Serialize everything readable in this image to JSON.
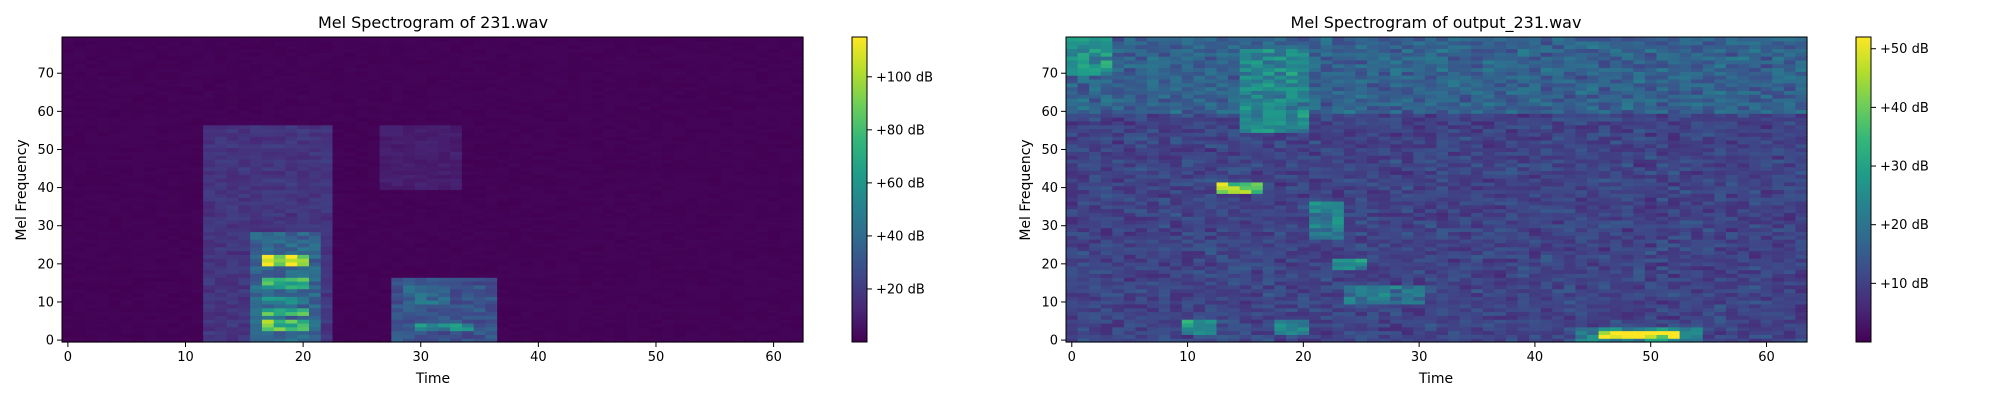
{
  "colors": {
    "viridis": [
      "#440154",
      "#482878",
      "#3e4989",
      "#31688e",
      "#26828e",
      "#1f9e89",
      "#35b779",
      "#6ece58",
      "#b5de2b",
      "#fde725"
    ]
  },
  "chart_data": [
    {
      "type": "heatmap",
      "title": "Mel Spectrogram of 231.wav",
      "xlabel": "Time",
      "ylabel": "Mel Frequency",
      "x_ticks": [
        0,
        10,
        20,
        30,
        40,
        50,
        60
      ],
      "y_ticks": [
        0,
        10,
        20,
        30,
        40,
        50,
        60,
        70
      ],
      "xlim": [
        -0.5,
        62.5
      ],
      "ylim": [
        -0.5,
        79.5
      ],
      "n_frames": 63,
      "n_mels": 80,
      "colorbar": {
        "min": 0,
        "max": 115,
        "ticks": [
          20,
          40,
          60,
          80,
          100
        ],
        "tick_labels": [
          "+20 dB",
          "+40 dB",
          "+60 dB",
          "+80 dB",
          "+100 dB"
        ]
      },
      "blobs": [
        {
          "t": [
            12,
            22
          ],
          "f": [
            0,
            56
          ],
          "level": 18
        },
        {
          "t": [
            16,
            21
          ],
          "f": [
            0,
            28
          ],
          "level": 38
        },
        {
          "t": [
            17,
            20
          ],
          "f": [
            20,
            22
          ],
          "level": 112
        },
        {
          "t": [
            17,
            20
          ],
          "f": [
            14,
            16
          ],
          "level": 75
        },
        {
          "t": [
            17,
            20
          ],
          "f": [
            7,
            8
          ],
          "level": 80
        },
        {
          "t": [
            17,
            20
          ],
          "f": [
            3,
            5
          ],
          "level": 88
        },
        {
          "t": [
            17,
            20
          ],
          "f": [
            10,
            11
          ],
          "level": 55
        },
        {
          "t": [
            28,
            36
          ],
          "f": [
            0,
            16
          ],
          "level": 30
        },
        {
          "t": [
            29,
            32
          ],
          "f": [
            10,
            14
          ],
          "level": 42
        },
        {
          "t": [
            30,
            34
          ],
          "f": [
            3,
            4
          ],
          "level": 55
        },
        {
          "t": [
            27,
            33
          ],
          "f": [
            40,
            56
          ],
          "level": 9
        }
      ]
    },
    {
      "type": "heatmap",
      "title": "Mel Spectrogram of output_231.wav",
      "xlabel": "Time",
      "ylabel": "Mel Frequency",
      "x_ticks": [
        0,
        10,
        20,
        30,
        40,
        50,
        60
      ],
      "y_ticks": [
        0,
        10,
        20,
        30,
        40,
        50,
        60,
        70
      ],
      "xlim": [
        -0.5,
        63.5
      ],
      "ylim": [
        -0.5,
        79.5
      ],
      "n_frames": 64,
      "n_mels": 80,
      "colorbar": {
        "min": 0,
        "max": 52,
        "ticks": [
          10,
          20,
          30,
          40,
          50
        ],
        "tick_labels": [
          "+10 dB",
          "+20 dB",
          "+30 dB",
          "+40 dB",
          "+50 dB"
        ]
      },
      "blobs": [
        {
          "t": [
            0,
            63
          ],
          "f": [
            60,
            79
          ],
          "level": 14
        },
        {
          "t": [
            0,
            63
          ],
          "f": [
            0,
            59
          ],
          "level": 8
        },
        {
          "t": [
            13,
            16
          ],
          "f": [
            39,
            41
          ],
          "level": 40
        },
        {
          "t": [
            46,
            52
          ],
          "f": [
            1,
            2
          ],
          "level": 52
        },
        {
          "t": [
            44,
            54
          ],
          "f": [
            0,
            3
          ],
          "level": 22
        },
        {
          "t": [
            10,
            12
          ],
          "f": [
            2,
            5
          ],
          "level": 25
        },
        {
          "t": [
            18,
            20
          ],
          "f": [
            2,
            5
          ],
          "level": 22
        },
        {
          "t": [
            21,
            23
          ],
          "f": [
            27,
            36
          ],
          "level": 20
        },
        {
          "t": [
            23,
            25
          ],
          "f": [
            19,
            21
          ],
          "level": 24
        },
        {
          "t": [
            15,
            20
          ],
          "f": [
            55,
            76
          ],
          "level": 22
        },
        {
          "t": [
            0,
            3
          ],
          "f": [
            70,
            79
          ],
          "level": 24
        },
        {
          "t": [
            24,
            30
          ],
          "f": [
            10,
            14
          ],
          "level": 18
        }
      ]
    }
  ]
}
